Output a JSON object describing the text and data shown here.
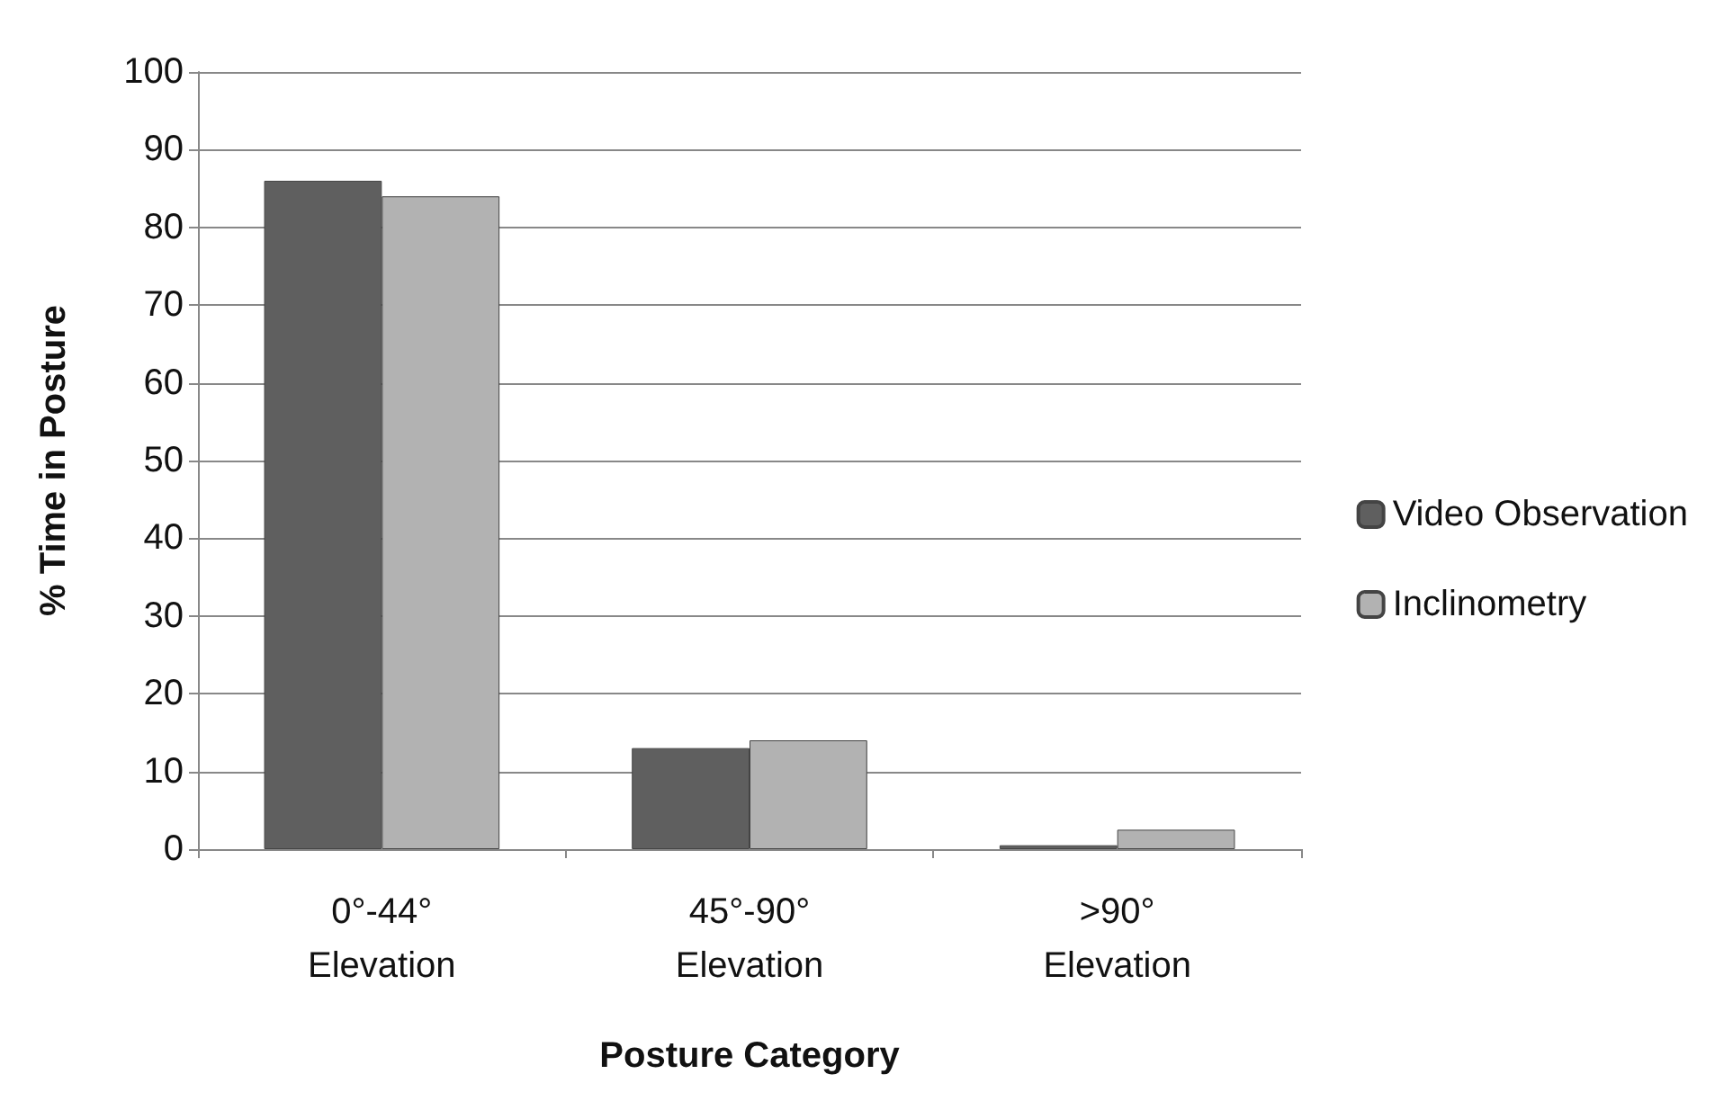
{
  "chart_data": {
    "type": "bar",
    "xlabel": "Posture Category",
    "ylabel": "% Time in Posture",
    "categories": [
      "0°-44° Elevation",
      "45°-90° Elevation",
      ">90° Elevation"
    ],
    "series": [
      {
        "name": "Video Observation",
        "color": "#5f5f5f",
        "values": [
          86,
          13,
          0.5
        ]
      },
      {
        "name": "Inclinometry",
        "color": "#b2b2b2",
        "values": [
          84,
          14,
          2.5
        ]
      }
    ],
    "ylim": [
      0,
      100
    ],
    "yticks": [
      0,
      10,
      20,
      30,
      40,
      50,
      60,
      70,
      80,
      90,
      100
    ],
    "grid": true,
    "legend": "right"
  }
}
